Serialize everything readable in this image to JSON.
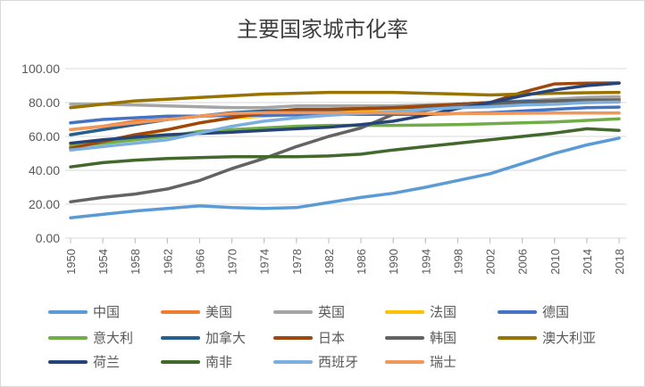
{
  "chart_data": {
    "type": "line",
    "title": "主要国家城市化率",
    "xlabel": "",
    "ylabel": "",
    "ylim": [
      0,
      100
    ],
    "yticks": [
      "0.00",
      "20.00",
      "40.00",
      "60.00",
      "80.00",
      "100.00"
    ],
    "x": [
      1950,
      1954,
      1958,
      1962,
      1966,
      1970,
      1974,
      1978,
      1982,
      1986,
      1990,
      1994,
      1998,
      2002,
      2006,
      2010,
      2014,
      2018
    ],
    "grid": true,
    "legend": "bottom",
    "series": [
      {
        "name": "中国",
        "color": "#5B9BD5",
        "values": [
          12,
          14,
          16,
          17.5,
          19,
          18,
          17.5,
          18,
          21,
          24,
          26.5,
          30,
          34,
          38,
          44,
          50,
          55,
          59
        ]
      },
      {
        "name": "美国",
        "color": "#ED7D31",
        "values": [
          64,
          66,
          69,
          70,
          72,
          73.5,
          73.6,
          73.7,
          74,
          75,
          75.3,
          77,
          78,
          79,
          80,
          81,
          82,
          82.3
        ]
      },
      {
        "name": "英国",
        "color": "#A5A5A5",
        "values": [
          79,
          79,
          78.5,
          78,
          77.5,
          77,
          77,
          78,
          78,
          78,
          78,
          78.5,
          79,
          80,
          81,
          82,
          83,
          83.4
        ]
      },
      {
        "name": "法国",
        "color": "#FFC000",
        "values": [
          55,
          57,
          60,
          64,
          68,
          71,
          72,
          73,
          74,
          74.5,
          75,
          76,
          77,
          78,
          79,
          79.5,
          80,
          80.4
        ]
      },
      {
        "name": "德国",
        "color": "#4472C4",
        "values": [
          68,
          70,
          71,
          72,
          72,
          72.5,
          72.5,
          72.7,
          73,
          73,
          73,
          73,
          73.5,
          74,
          75,
          76,
          77,
          77.3
        ]
      },
      {
        "name": "意大利",
        "color": "#70AD47",
        "values": [
          54,
          56,
          58,
          60,
          63,
          64,
          65,
          66,
          66.5,
          66.5,
          66.5,
          66.7,
          67,
          67.5,
          68,
          68.5,
          69.5,
          70.4
        ]
      },
      {
        "name": "加拿大",
        "color": "#255E91",
        "values": [
          61,
          64,
          67,
          70,
          72,
          74,
          75,
          75.5,
          75.7,
          76.5,
          77,
          77.5,
          79,
          80,
          80.5,
          81,
          81.3,
          81.4
        ]
      },
      {
        "name": "日本",
        "color": "#9E480E",
        "values": [
          53,
          57,
          61,
          64,
          68,
          71,
          74,
          76,
          76,
          76.5,
          77,
          78,
          79,
          80,
          86,
          91,
          91.5,
          91.6
        ]
      },
      {
        "name": "韩国",
        "color": "#636363",
        "values": [
          21.4,
          24,
          26,
          29,
          34,
          41,
          47,
          54,
          60,
          65,
          73,
          75.5,
          78,
          79,
          80,
          81,
          81.5,
          81.5
        ]
      },
      {
        "name": "澳大利亚",
        "color": "#997300",
        "values": [
          77,
          79,
          81,
          82,
          83,
          84,
          85,
          85.5,
          86,
          86,
          86,
          85.5,
          85,
          84.5,
          85,
          85.5,
          85.8,
          86
        ]
      },
      {
        "name": "荷兰",
        "color": "#264478",
        "values": [
          56,
          58,
          59.5,
          61,
          61.8,
          62.5,
          63.5,
          64.5,
          65.5,
          67,
          69,
          72.5,
          76.5,
          80,
          84,
          87.5,
          90,
          91.5
        ]
      },
      {
        "name": "南非",
        "color": "#43682B",
        "values": [
          42,
          44.5,
          46,
          47,
          47.5,
          48,
          48,
          48,
          48.5,
          49.5,
          52,
          54,
          56,
          58,
          60,
          62,
          64.5,
          63.6
        ]
      },
      {
        "name": "西班牙",
        "color": "#7CAFDD",
        "values": [
          52,
          54,
          56,
          58,
          62,
          66,
          69,
          71,
          72.5,
          73.5,
          74.5,
          76,
          77,
          77.5,
          78.5,
          79,
          80,
          80.3
        ]
      },
      {
        "name": "瑞士",
        "color": "#F1975A",
        "values": [
          64,
          66,
          68,
          70,
          72,
          73.5,
          74,
          74,
          74,
          74,
          73.8,
          73.5,
          73.5,
          73.6,
          73.7,
          73.8,
          73.8,
          73.8
        ]
      }
    ]
  }
}
